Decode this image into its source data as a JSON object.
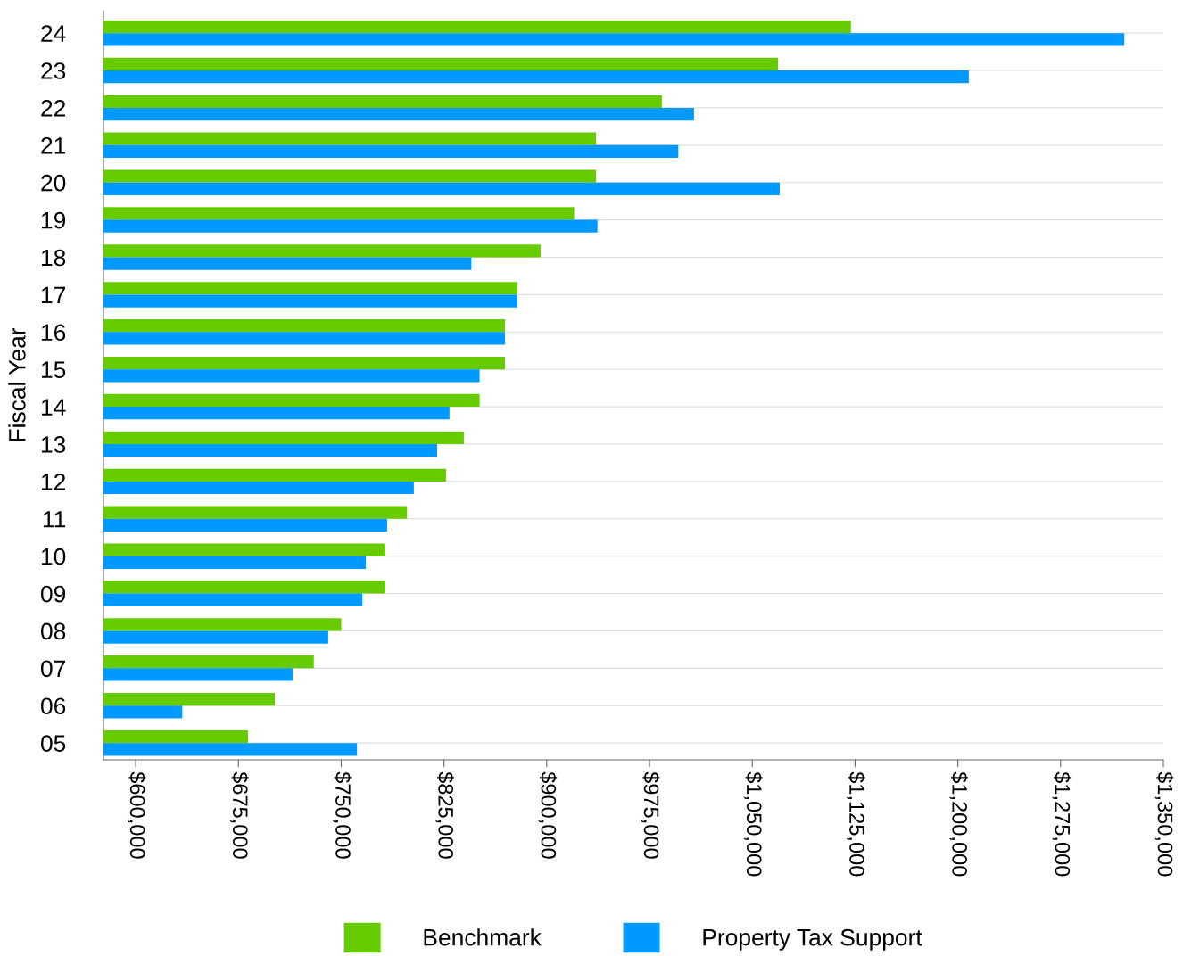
{
  "chart_data": {
    "type": "bar",
    "orientation": "horizontal",
    "ylabel": "Fiscal Year",
    "categories": [
      "24",
      "23",
      "22",
      "21",
      "20",
      "19",
      "18",
      "17",
      "16",
      "15",
      "14",
      "13",
      "12",
      "11",
      "10",
      "09",
      "08",
      "07",
      "06",
      "05"
    ],
    "series": [
      {
        "name": "Benchmark",
        "color": "#66cc00",
        "values": [
          1122000,
          1068750,
          984000,
          936000,
          936000,
          920000,
          895500,
          878500,
          869500,
          869500,
          851000,
          839500,
          826500,
          798000,
          782000,
          782000,
          750000,
          730000,
          701500,
          682000
        ]
      },
      {
        "name": "Property Tax Support",
        "color": "#0099ff",
        "values": [
          1321500,
          1208000,
          1007500,
          996000,
          1070000,
          937000,
          845000,
          878500,
          869500,
          851000,
          829000,
          820000,
          803000,
          783500,
          768000,
          765500,
          740500,
          714500,
          634000,
          761500
        ]
      }
    ],
    "xlim": [
      576500,
      1350000
    ],
    "xticks": [
      {
        "value": 600000,
        "label": "$600,000"
      },
      {
        "value": 675000,
        "label": "$675,000"
      },
      {
        "value": 750000,
        "label": "$750,000"
      },
      {
        "value": 825000,
        "label": "$825,000"
      },
      {
        "value": 900000,
        "label": "$900,000"
      },
      {
        "value": 975000,
        "label": "$975,000"
      },
      {
        "value": 1050000,
        "label": "$1,050,000"
      },
      {
        "value": 1125000,
        "label": "$1,125,000"
      },
      {
        "value": 1200000,
        "label": "$1,200,000"
      },
      {
        "value": 1275000,
        "label": "$1,275,000"
      },
      {
        "value": 1350000,
        "label": "$1,350,000"
      }
    ],
    "grid": "y",
    "legend": "bottom"
  }
}
